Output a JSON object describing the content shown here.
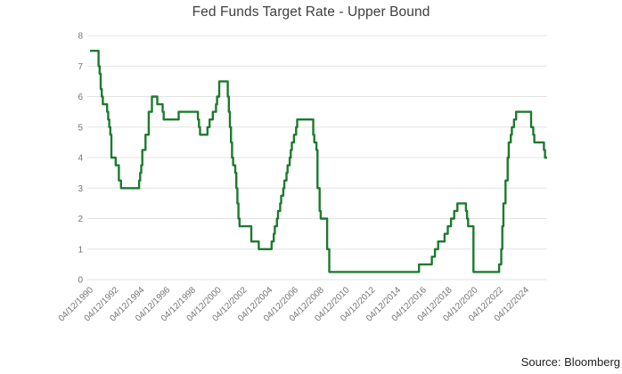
{
  "chart": {
    "title": "Fed Funds Target Rate - Upper Bound"
  },
  "source": {
    "label": "Source: Bloomberg"
  },
  "chart_data": {
    "type": "line",
    "step": true,
    "title": "Fed Funds Target Rate - Upper Bound",
    "legend": "none",
    "grid": true,
    "background": "#ffffff",
    "colors": {
      "line": "#1d7a2e",
      "grid": "#e3e3e3",
      "axis_text": "#757575",
      "title_text": "#3f3f3f",
      "source_text": "#1f1f1f"
    },
    "y_axis": {
      "min": 0,
      "max": 8,
      "tick_interval": 1,
      "ticks": [
        0,
        1,
        2,
        3,
        4,
        5,
        6,
        7,
        8
      ]
    },
    "x_axis": {
      "start_date": "1990-04",
      "end_date": "2025-12",
      "label_rotation_deg": 45,
      "tick_labels": [
        "04/12/1990",
        "04/12/1992",
        "04/12/1994",
        "04/12/1996",
        "04/12/1998",
        "04/12/2000",
        "04/12/2002",
        "04/12/2004",
        "04/12/2006",
        "04/12/2008",
        "04/12/2010",
        "04/12/2012",
        "04/12/2014",
        "04/12/2016",
        "04/12/2018",
        "04/12/2020",
        "04/12/2022",
        "04/12/2024"
      ]
    },
    "series": [
      {
        "name": "Fed Funds Target Rate - Upper Bound",
        "unit": "percent",
        "points": [
          [
            "1990-04",
            7.5
          ],
          [
            "1990-12",
            7.0
          ],
          [
            "1991-01",
            6.75
          ],
          [
            "1991-02",
            6.25
          ],
          [
            "1991-03",
            6.0
          ],
          [
            "1991-04",
            5.75
          ],
          [
            "1991-08",
            5.5
          ],
          [
            "1991-09",
            5.25
          ],
          [
            "1991-10",
            5.0
          ],
          [
            "1991-11",
            4.75
          ],
          [
            "1991-12",
            4.0
          ],
          [
            "1992-04",
            3.75
          ],
          [
            "1992-07",
            3.25
          ],
          [
            "1992-09",
            3.0
          ],
          [
            "1994-02",
            3.25
          ],
          [
            "1994-03",
            3.5
          ],
          [
            "1994-04",
            3.75
          ],
          [
            "1994-05",
            4.25
          ],
          [
            "1994-08",
            4.75
          ],
          [
            "1994-11",
            5.5
          ],
          [
            "1995-02",
            6.0
          ],
          [
            "1995-07",
            5.75
          ],
          [
            "1995-12",
            5.5
          ],
          [
            "1996-01",
            5.25
          ],
          [
            "1997-03",
            5.5
          ],
          [
            "1998-09",
            5.25
          ],
          [
            "1998-10",
            5.0
          ],
          [
            "1998-11",
            4.75
          ],
          [
            "1999-06",
            5.0
          ],
          [
            "1999-08",
            5.25
          ],
          [
            "1999-11",
            5.5
          ],
          [
            "2000-02",
            5.75
          ],
          [
            "2000-03",
            6.0
          ],
          [
            "2000-05",
            6.5
          ],
          [
            "2001-01",
            6.0
          ],
          [
            "2001-02",
            5.5
          ],
          [
            "2001-03",
            5.0
          ],
          [
            "2001-04",
            4.5
          ],
          [
            "2001-05",
            4.0
          ],
          [
            "2001-06",
            3.75
          ],
          [
            "2001-08",
            3.5
          ],
          [
            "2001-09",
            3.0
          ],
          [
            "2001-10",
            2.5
          ],
          [
            "2001-11",
            2.0
          ],
          [
            "2001-12",
            1.75
          ],
          [
            "2002-11",
            1.25
          ],
          [
            "2003-06",
            1.0
          ],
          [
            "2004-06",
            1.25
          ],
          [
            "2004-08",
            1.5
          ],
          [
            "2004-09",
            1.75
          ],
          [
            "2004-11",
            2.0
          ],
          [
            "2004-12",
            2.25
          ],
          [
            "2005-02",
            2.5
          ],
          [
            "2005-03",
            2.75
          ],
          [
            "2005-05",
            3.0
          ],
          [
            "2005-06",
            3.25
          ],
          [
            "2005-08",
            3.5
          ],
          [
            "2005-09",
            3.75
          ],
          [
            "2005-11",
            4.0
          ],
          [
            "2005-12",
            4.25
          ],
          [
            "2006-01",
            4.5
          ],
          [
            "2006-03",
            4.75
          ],
          [
            "2006-05",
            5.0
          ],
          [
            "2006-06",
            5.25
          ],
          [
            "2007-09",
            4.75
          ],
          [
            "2007-10",
            4.5
          ],
          [
            "2007-12",
            4.25
          ],
          [
            "2008-01",
            3.0
          ],
          [
            "2008-03",
            2.25
          ],
          [
            "2008-04",
            2.0
          ],
          [
            "2008-10",
            1.0
          ],
          [
            "2008-12",
            0.25
          ],
          [
            "2015-12",
            0.5
          ],
          [
            "2016-12",
            0.75
          ],
          [
            "2017-03",
            1.0
          ],
          [
            "2017-06",
            1.25
          ],
          [
            "2017-12",
            1.5
          ],
          [
            "2018-03",
            1.75
          ],
          [
            "2018-06",
            2.0
          ],
          [
            "2018-09",
            2.25
          ],
          [
            "2018-12",
            2.5
          ],
          [
            "2019-08",
            2.25
          ],
          [
            "2019-09",
            2.0
          ],
          [
            "2019-10",
            1.75
          ],
          [
            "2020-03",
            0.25
          ],
          [
            "2022-03",
            0.5
          ],
          [
            "2022-05",
            1.0
          ],
          [
            "2022-06",
            1.75
          ],
          [
            "2022-07",
            2.5
          ],
          [
            "2022-09",
            3.25
          ],
          [
            "2022-11",
            4.0
          ],
          [
            "2022-12",
            4.5
          ],
          [
            "2023-02",
            4.75
          ],
          [
            "2023-03",
            5.0
          ],
          [
            "2023-05",
            5.25
          ],
          [
            "2023-07",
            5.5
          ],
          [
            "2024-09",
            5.0
          ],
          [
            "2024-11",
            4.75
          ],
          [
            "2024-12",
            4.5
          ],
          [
            "2025-09",
            4.25
          ],
          [
            "2025-10",
            4.0
          ]
        ]
      }
    ]
  }
}
